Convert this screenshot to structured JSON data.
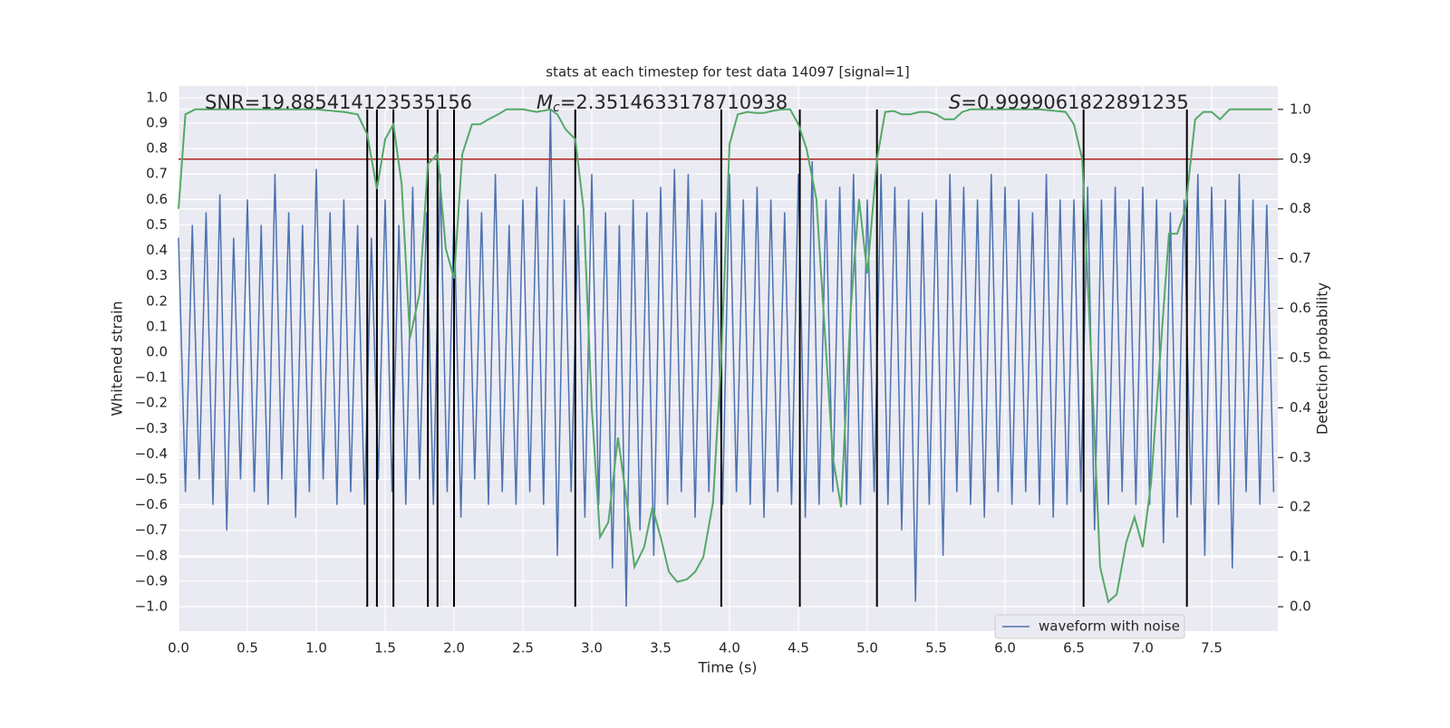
{
  "chart_data": {
    "type": "line",
    "title": "stats at each timestep for test data 14097 [signal=1]",
    "xlabel": "Time (s)",
    "ylabel": "Whitened strain",
    "y2label": "Detection probability",
    "annotations": [
      {
        "text": "SNR=19.885414123535156"
      },
      {
        "symbol": "M",
        "subscript": "c",
        "text": "=2.3514633178710938"
      },
      {
        "symbol": "S",
        "text": "=0.9999061822891235"
      }
    ],
    "xlim": [
      0,
      7.98
    ],
    "ylim": [
      -1.096,
      1.046
    ],
    "y2lim": [
      -0.049,
      1.047
    ],
    "xticks": [
      {
        "value": 0,
        "label": "0.0"
      },
      0.5,
      {
        "value": 1,
        "label": "1.0"
      },
      1.5,
      {
        "value": 2,
        "label": "2.0"
      },
      2.5,
      {
        "value": 3,
        "label": "3.0"
      },
      3.5,
      {
        "value": 4,
        "label": "4.0"
      },
      4.5,
      {
        "value": 5,
        "label": "5.0"
      },
      5.5,
      {
        "value": 6,
        "label": "6.0"
      },
      6.5,
      {
        "value": 7,
        "label": "7.0"
      },
      7.5
    ],
    "yticks": [
      {
        "value": -1,
        "label": "−1.0"
      },
      {
        "value": -0.9,
        "label": "−0.9"
      },
      {
        "value": -0.8,
        "label": "−0.8"
      },
      {
        "value": -0.7,
        "label": "−0.7"
      },
      {
        "value": -0.6,
        "label": "−0.6"
      },
      {
        "value": -0.5,
        "label": "−0.5"
      },
      {
        "value": -0.4,
        "label": "−0.4"
      },
      {
        "value": -0.3,
        "label": "−0.3"
      },
      {
        "value": -0.2,
        "label": "−0.2"
      },
      {
        "value": -0.1,
        "label": "−0.1"
      },
      {
        "value": 0,
        "label": "0.0"
      },
      0.1,
      0.2,
      0.3,
      0.4,
      0.5,
      0.6,
      0.7,
      0.8,
      0.9,
      {
        "value": 1,
        "label": "1.0"
      }
    ],
    "y2ticks": [
      {
        "value": 0,
        "label": "0.0"
      },
      0.1,
      0.2,
      0.3,
      0.4,
      0.5,
      0.6,
      0.7,
      0.8,
      0.9,
      {
        "value": 1,
        "label": "1.0"
      }
    ],
    "grid": true,
    "legend": "lower right",
    "series": [
      {
        "name": "waveform with noise",
        "color": "#4c72b0",
        "x": [
          0,
          0.05,
          0.1,
          0.15,
          0.2,
          0.25,
          0.3,
          0.35,
          0.4,
          0.45,
          0.5,
          0.55,
          0.6,
          0.65,
          0.7,
          0.75,
          0.8,
          0.85,
          0.9,
          0.95,
          1,
          1.05,
          1.1,
          1.15,
          1.2,
          1.25,
          1.3,
          1.35,
          1.4,
          1.45,
          1.5,
          1.55,
          1.6,
          1.65,
          1.7,
          1.75,
          1.8,
          1.85,
          1.9,
          1.95,
          2,
          2.05,
          2.1,
          2.15,
          2.2,
          2.25,
          2.3,
          2.35,
          2.4,
          2.45,
          2.5,
          2.55,
          2.6,
          2.65,
          2.7,
          2.75,
          2.8,
          2.85,
          2.9,
          2.95,
          3,
          3.05,
          3.1,
          3.15,
          3.2,
          3.25,
          3.3,
          3.35,
          3.4,
          3.45,
          3.5,
          3.55,
          3.6,
          3.65,
          3.7,
          3.75,
          3.8,
          3.85,
          3.9,
          3.95,
          4,
          4.05,
          4.1,
          4.15,
          4.2,
          4.25,
          4.3,
          4.35,
          4.4,
          4.45,
          4.5,
          4.55,
          4.6,
          4.65,
          4.7,
          4.75,
          4.8,
          4.85,
          4.9,
          4.95,
          5,
          5.05,
          5.1,
          5.15,
          5.2,
          5.25,
          5.3,
          5.35,
          5.4,
          5.45,
          5.5,
          5.55,
          5.6,
          5.65,
          5.7,
          5.75,
          5.8,
          5.85,
          5.9,
          5.95,
          6,
          6.05,
          6.1,
          6.15,
          6.2,
          6.25,
          6.3,
          6.35,
          6.4,
          6.45,
          6.5,
          6.55,
          6.6,
          6.65,
          6.7,
          6.75,
          6.8,
          6.85,
          6.9,
          6.95,
          7,
          7.05,
          7.1,
          7.15,
          7.2,
          7.25,
          7.3,
          7.35,
          7.4,
          7.45,
          7.5,
          7.55,
          7.6,
          7.65,
          7.7,
          7.75,
          7.8,
          7.85,
          7.9,
          7.95
        ],
        "values": [
          0.45,
          -0.55,
          0.5,
          -0.5,
          0.55,
          -0.6,
          0.62,
          -0.7,
          0.45,
          -0.5,
          0.6,
          -0.55,
          0.5,
          -0.6,
          0.7,
          -0.5,
          0.55,
          -0.65,
          0.5,
          -0.55,
          0.72,
          -0.5,
          0.55,
          -0.6,
          0.6,
          -0.55,
          0.5,
          -0.6,
          0.45,
          -0.5,
          0.6,
          -0.55,
          0.5,
          -0.6,
          0.65,
          -0.5,
          0.55,
          -0.6,
          0.7,
          -0.55,
          0.55,
          -0.65,
          0.6,
          -0.5,
          0.55,
          -0.6,
          0.7,
          -0.55,
          0.5,
          -0.6,
          0.6,
          -0.55,
          0.65,
          -0.6,
          0.95,
          -0.8,
          0.6,
          -0.55,
          0.5,
          -0.65,
          0.7,
          -0.6,
          0.55,
          -0.85,
          0.5,
          -1.0,
          0.6,
          -0.7,
          0.55,
          -0.8,
          0.65,
          -0.6,
          0.72,
          -0.55,
          0.7,
          -0.65,
          0.6,
          -0.55,
          0.55,
          -0.6,
          0.7,
          -0.55,
          0.6,
          -0.6,
          0.65,
          -0.65,
          0.6,
          -0.55,
          0.55,
          -0.6,
          0.7,
          -0.65,
          0.75,
          -0.6,
          0.6,
          -0.55,
          0.65,
          -0.6,
          0.7,
          -0.6,
          0.6,
          -0.55,
          0.7,
          -0.6,
          0.65,
          -0.7,
          0.6,
          -0.98,
          0.55,
          -0.6,
          0.6,
          -0.8,
          0.7,
          -0.55,
          0.65,
          -0.6,
          0.6,
          -0.65,
          0.7,
          -0.55,
          0.65,
          -0.6,
          0.6,
          -0.55,
          0.55,
          -0.6,
          0.7,
          -0.65,
          0.6,
          -0.6,
          0.6,
          -0.55,
          0.65,
          -0.7,
          0.6,
          -0.6,
          0.65,
          -0.55,
          0.6,
          -0.6,
          0.65,
          -0.6,
          0.6,
          -0.75,
          0.55,
          -0.65,
          0.6,
          -0.6,
          0.7,
          -0.8,
          0.65,
          -0.6,
          0.6,
          -0.85,
          0.7,
          -0.55,
          0.6,
          -0.6,
          0.58,
          -0.55
        ]
      }
    ],
    "probability": {
      "color": "#55a868",
      "axis": "y2",
      "x": [
        0,
        0.05,
        0.12,
        0.5,
        1,
        1.2,
        1.3,
        1.37,
        1.44,
        1.5,
        1.56,
        1.62,
        1.68,
        1.75,
        1.81,
        1.88,
        1.94,
        2,
        2.06,
        2.13,
        2.19,
        2.25,
        2.32,
        2.38,
        2.5,
        2.6,
        2.7,
        2.75,
        2.81,
        2.88,
        2.94,
        3,
        3.06,
        3.12,
        3.19,
        3.25,
        3.31,
        3.38,
        3.44,
        3.5,
        3.56,
        3.62,
        3.69,
        3.75,
        3.81,
        3.88,
        3.94,
        4,
        4.06,
        4.13,
        4.19,
        4.25,
        4.31,
        4.38,
        4.44,
        4.5,
        4.56,
        4.63,
        4.69,
        4.75,
        4.81,
        4.88,
        4.94,
        5,
        5.07,
        5.13,
        5.19,
        5.25,
        5.31,
        5.38,
        5.44,
        5.5,
        5.56,
        5.63,
        5.69,
        5.75,
        6,
        6.25,
        6.44,
        6.5,
        6.56,
        6.63,
        6.69,
        6.75,
        6.81,
        6.88,
        6.94,
        7,
        7.06,
        7.13,
        7.19,
        7.25,
        7.31,
        7.38,
        7.44,
        7.5,
        7.56,
        7.63,
        7.94
      ],
      "values": [
        0.8,
        0.99,
        1,
        1,
        1,
        0.995,
        0.99,
        0.95,
        0.84,
        0.94,
        0.97,
        0.85,
        0.54,
        0.63,
        0.89,
        0.91,
        0.72,
        0.66,
        0.91,
        0.97,
        0.97,
        0.98,
        0.99,
        1,
        1,
        0.995,
        1,
        0.99,
        0.96,
        0.94,
        0.8,
        0.4,
        0.14,
        0.17,
        0.34,
        0.22,
        0.08,
        0.12,
        0.2,
        0.14,
        0.07,
        0.05,
        0.055,
        0.07,
        0.1,
        0.21,
        0.5,
        0.93,
        0.99,
        0.995,
        0.993,
        0.993,
        0.997,
        1,
        1,
        0.97,
        0.92,
        0.82,
        0.56,
        0.3,
        0.2,
        0.6,
        0.82,
        0.67,
        0.9,
        0.995,
        0.997,
        0.99,
        0.99,
        0.995,
        0.995,
        0.99,
        0.98,
        0.98,
        0.995,
        1,
        1,
        1,
        0.995,
        0.97,
        0.9,
        0.47,
        0.08,
        0.01,
        0.025,
        0.13,
        0.18,
        0.12,
        0.25,
        0.52,
        0.75,
        0.75,
        0.8,
        0.98,
        0.995,
        0.995,
        0.98,
        1,
        1
      ]
    },
    "threshold": {
      "value": 0.9,
      "axis": "y2",
      "color": "#b22222"
    },
    "vlines": {
      "x": [
        1.37,
        1.44,
        1.56,
        1.81,
        1.88,
        2.0,
        2.88,
        3.94,
        4.51,
        5.07,
        6.57,
        7.32
      ],
      "range": [
        0,
        1
      ],
      "axis": "y2",
      "color": "#000000"
    }
  }
}
